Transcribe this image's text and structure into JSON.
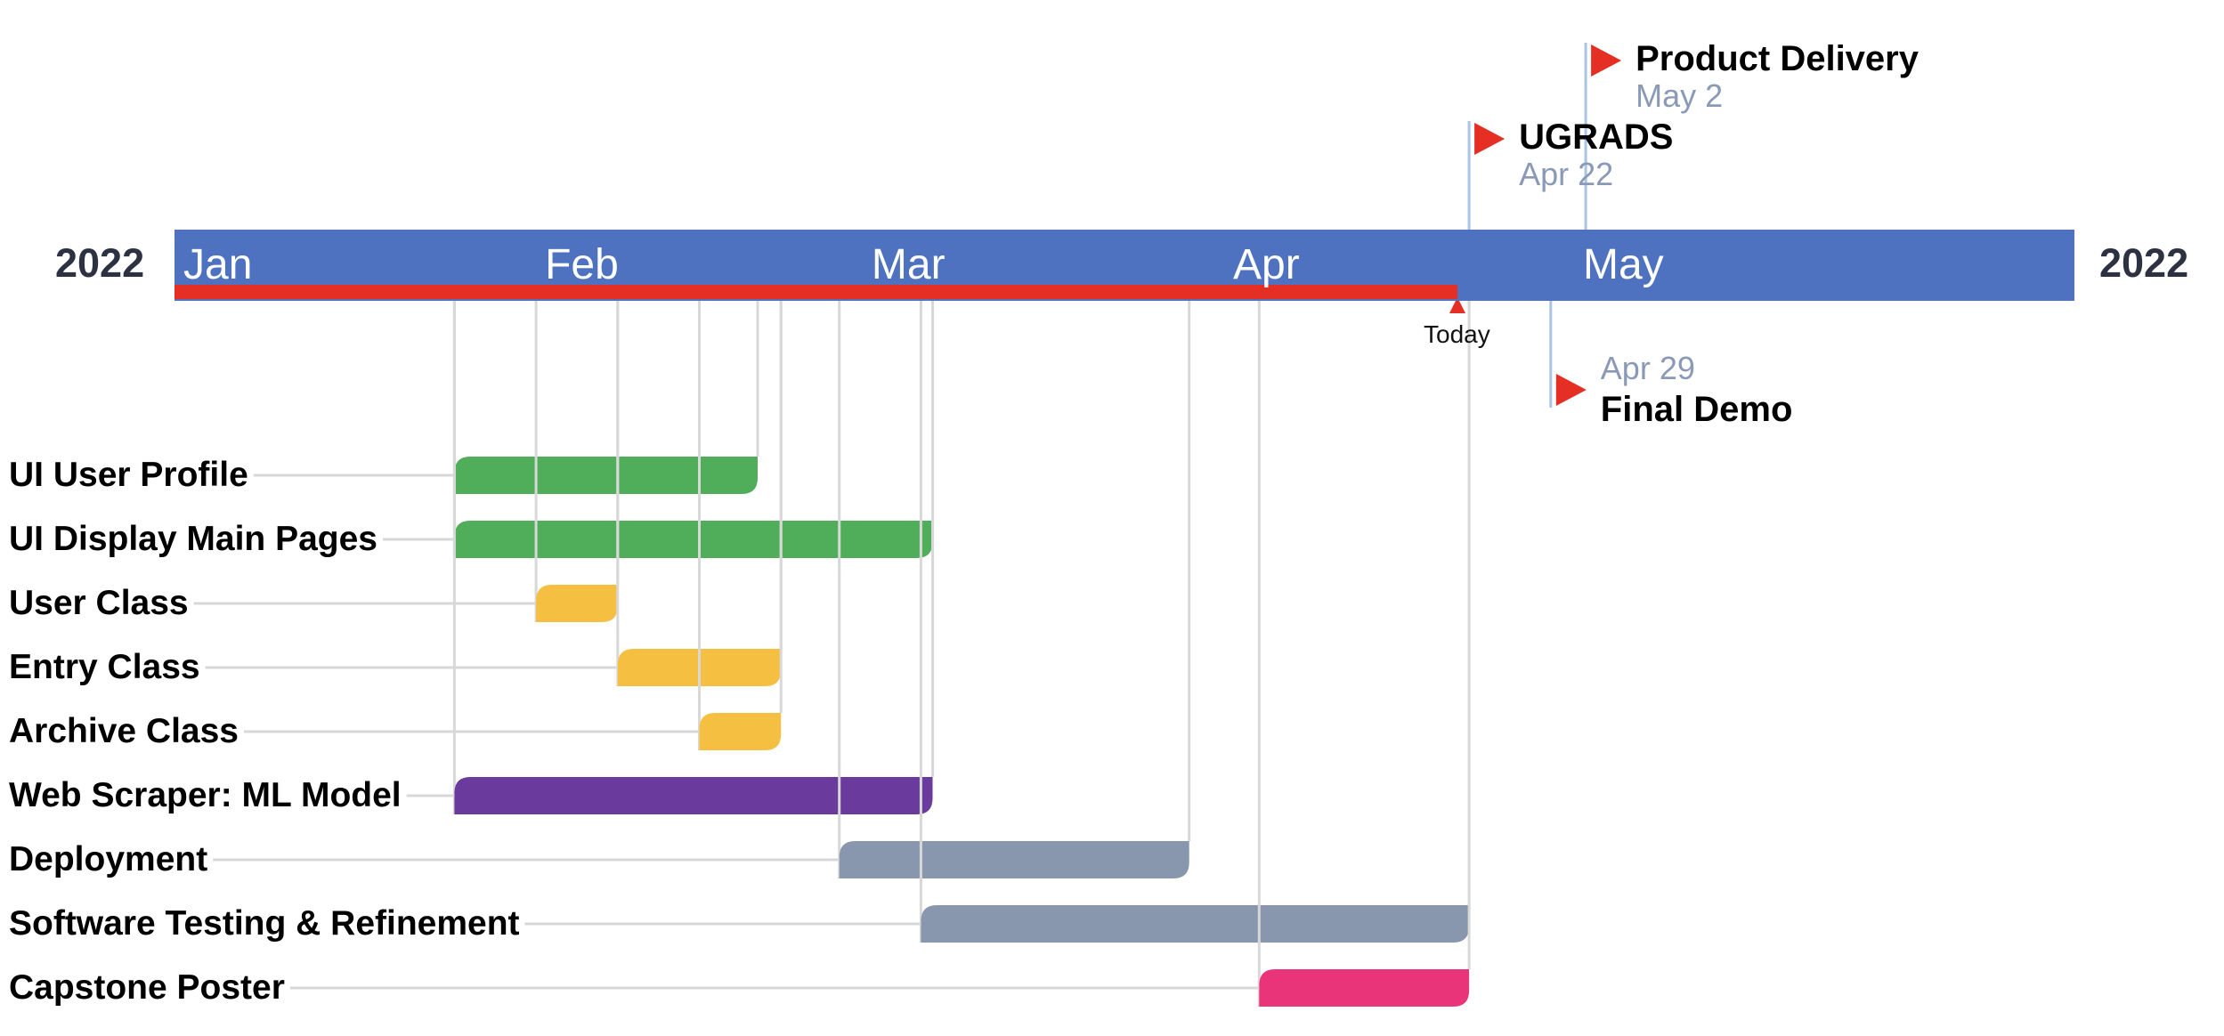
{
  "chart_data": {
    "type": "gantt",
    "year_label_left": "2022",
    "year_label_right": "2022",
    "months": [
      "Jan",
      "Feb",
      "Mar",
      "Apr",
      "May"
    ],
    "today": {
      "label": "Today",
      "date": "2022-04-21"
    },
    "tasks": [
      {
        "name": "UI User Profile",
        "start": "2022-01-25",
        "end": "2022-02-20",
        "color": "#50ad5a"
      },
      {
        "name": "UI Display Main Pages",
        "start": "2022-01-25",
        "end": "2022-03-07",
        "color": "#50ad5a"
      },
      {
        "name": "User Class",
        "start": "2022-02-01",
        "end": "2022-02-08",
        "color": "#f5c042"
      },
      {
        "name": "Entry Class",
        "start": "2022-02-08",
        "end": "2022-02-22",
        "color": "#f5c042"
      },
      {
        "name": "Archive Class",
        "start": "2022-02-15",
        "end": "2022-02-22",
        "color": "#f5c042"
      },
      {
        "name": "Web Scraper: ML Model",
        "start": "2022-01-25",
        "end": "2022-03-07",
        "color": "#6a3a9c"
      },
      {
        "name": "Deployment",
        "start": "2022-02-27",
        "end": "2022-03-29",
        "color": "#8896ae"
      },
      {
        "name": "Software Testing & Refinement",
        "start": "2022-03-06",
        "end": "2022-04-22",
        "color": "#8896ae"
      },
      {
        "name": "Capstone Poster",
        "start": "2022-04-04",
        "end": "2022-04-22",
        "color": "#ea3479"
      }
    ],
    "milestones": [
      {
        "name": "Product Delivery",
        "date_label": "May 2",
        "date": "2022-05-02",
        "position": "above"
      },
      {
        "name": "UGRADS",
        "date_label": "Apr 22",
        "date": "2022-04-22",
        "position": "above"
      },
      {
        "name": "Final Demo",
        "date_label": "Apr 29",
        "date": "2022-04-29",
        "position": "below"
      }
    ],
    "colors": {
      "axis": "#4e72c0",
      "today": "#e52f24",
      "milestone_flag": "#e52f24",
      "milestone_stem": "#a9c4e6",
      "grid": "#d8d8d8",
      "year_text": "#2d3242",
      "date_text": "#8a9ab6"
    }
  }
}
